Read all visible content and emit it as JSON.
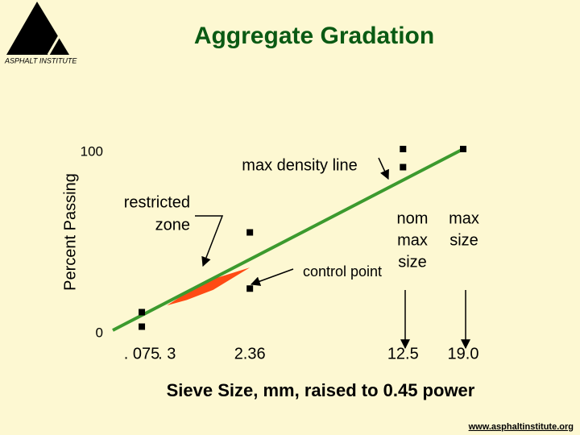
{
  "chart_data": {
    "type": "gradation",
    "title": "Aggregate Gradation",
    "logo_text": "ASPHALT INSTITUTE",
    "footer": "www.asphaltinstitute.org",
    "ylabel": "Percent Passing",
    "xlabel": "Sieve Size, mm, raised to 0.45 power",
    "xpower": 0.45,
    "xlim": [
      0,
      19
    ],
    "ylim": [
      0,
      100
    ],
    "yticks": [
      0,
      100
    ],
    "xticks": [
      {
        "value": 0.075,
        "label": ". 075"
      },
      {
        "value": 0.3,
        "label": ". 3"
      },
      2.36,
      12.5,
      {
        "value": 19,
        "label": "19.0"
      }
    ],
    "max_density_line": {
      "x": [
        0,
        19
      ],
      "values": [
        0,
        100
      ],
      "color": "#3c9a2e"
    },
    "control_points": {
      "x": [
        0.075,
        0.075,
        2.36,
        2.36,
        12.5,
        12.5,
        19
      ],
      "values": [
        2,
        10,
        23,
        54,
        90,
        100,
        100
      ],
      "color": "#000000"
    },
    "restricted_zone": {
      "x": [
        0.3,
        0.6,
        1.18,
        2.36
      ],
      "upper": [
        13.7,
        20.7,
        28.3,
        34.6
      ],
      "lower": [
        13.7,
        16.7,
        22.3,
        34.6
      ],
      "color": "#ff4a14"
    },
    "annotations": {
      "max_density": "max density line",
      "restricted_zone": [
        "restricted",
        "zone"
      ],
      "control_point": "control point",
      "nom_max_size": [
        "nom",
        "max",
        "size"
      ],
      "max_size": [
        "max",
        "size"
      ]
    }
  }
}
